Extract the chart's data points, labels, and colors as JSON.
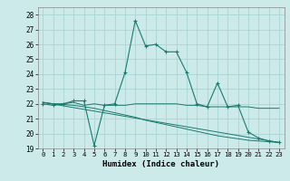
{
  "xlabel": "Humidex (Indice chaleur)",
  "xlim": [
    -0.5,
    23.5
  ],
  "ylim": [
    19,
    28.5
  ],
  "yticks": [
    19,
    20,
    21,
    22,
    23,
    24,
    25,
    26,
    27,
    28
  ],
  "xticks": [
    0,
    1,
    2,
    3,
    4,
    5,
    6,
    7,
    8,
    9,
    10,
    11,
    12,
    13,
    14,
    15,
    16,
    17,
    18,
    19,
    20,
    21,
    22,
    23
  ],
  "color": "#1a7a6e",
  "bg_color": "#cceaea",
  "grid_color": "#aad4d4",
  "series1_x": [
    0,
    1,
    2,
    3,
    4,
    5,
    6,
    7,
    8,
    9,
    10,
    11,
    12,
    13,
    14,
    15,
    16,
    17,
    18,
    19,
    20,
    21,
    22,
    23
  ],
  "series1_y": [
    22.0,
    21.9,
    22.0,
    22.2,
    22.2,
    19.2,
    21.9,
    22.0,
    24.1,
    27.6,
    25.9,
    26.0,
    25.5,
    25.5,
    24.1,
    22.0,
    21.8,
    23.4,
    21.8,
    21.9,
    20.1,
    19.7,
    19.5,
    19.4
  ],
  "series2_x": [
    0,
    1,
    2,
    3,
    4,
    5,
    6,
    7,
    8,
    9,
    10,
    11,
    12,
    13,
    14,
    15,
    16,
    17,
    18,
    19,
    20,
    21,
    22,
    23
  ],
  "series2_y": [
    22.1,
    22.0,
    22.0,
    22.1,
    21.9,
    22.0,
    21.9,
    21.9,
    21.9,
    22.0,
    22.0,
    22.0,
    22.0,
    22.0,
    21.9,
    21.9,
    21.8,
    21.8,
    21.8,
    21.8,
    21.8,
    21.7,
    21.7,
    21.7
  ],
  "series3_x": [
    0,
    1,
    2,
    3,
    4,
    5,
    6,
    7,
    8,
    9,
    10,
    11,
    12,
    13,
    14,
    15,
    16,
    17,
    18,
    19,
    20,
    21,
    22,
    23
  ],
  "series3_y": [
    22.1,
    22.0,
    21.95,
    21.9,
    21.8,
    21.7,
    21.55,
    21.4,
    21.25,
    21.1,
    20.9,
    20.75,
    20.6,
    20.45,
    20.3,
    20.15,
    20.0,
    19.85,
    19.75,
    19.65,
    19.55,
    19.5,
    19.45,
    19.4
  ],
  "series4_x": [
    0,
    23
  ],
  "series4_y": [
    22.1,
    19.4
  ]
}
